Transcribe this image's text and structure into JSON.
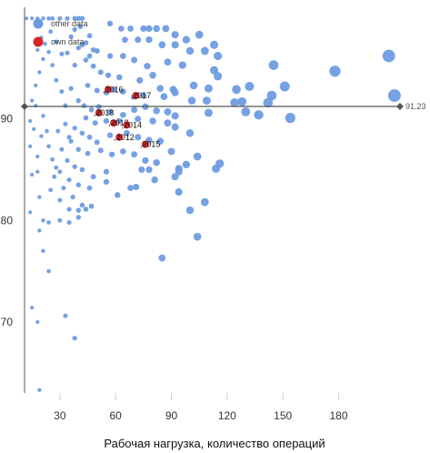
{
  "chart_data": {
    "type": "scatter",
    "xlabel": "Рабочая нагрузка, количество операций",
    "ylabel": "",
    "xlim": [
      11,
      213
    ],
    "ylim": [
      63,
      101
    ],
    "x_ticks": [
      30,
      60,
      90,
      120,
      150,
      180
    ],
    "y_ticks": [
      70,
      80,
      90
    ],
    "grid": false,
    "legend_position": "top-left",
    "reference_line": {
      "y": 91.23,
      "label": "91.23"
    },
    "colors": {
      "other": "#6a99e0",
      "own": "#d62728",
      "axis": "#555555",
      "tick_line": "#cfcfcf"
    },
    "series": [
      {
        "name": "other data",
        "color": "#6a99e0",
        "points": [
          [
            12,
            99.9
          ],
          [
            15,
            99.9
          ],
          [
            18,
            99.9
          ],
          [
            21,
            99.9
          ],
          [
            24,
            99.9
          ],
          [
            26,
            99.9
          ],
          [
            30,
            99.9
          ],
          [
            34,
            99.9
          ],
          [
            38,
            99.9
          ],
          [
            40,
            99.9
          ],
          [
            42,
            99.9
          ],
          [
            57,
            99.4
          ],
          [
            63,
            98.9
          ],
          [
            68,
            98.9
          ],
          [
            75,
            98.9
          ],
          [
            78,
            98.9
          ],
          [
            82,
            98.9
          ],
          [
            87,
            98.9
          ],
          [
            92,
            98.3
          ],
          [
            98,
            97.8
          ],
          [
            105,
            98.3
          ],
          [
            113,
            97.3
          ],
          [
            65,
            97.8
          ],
          [
            72,
            97.8
          ],
          [
            78,
            97.8
          ],
          [
            85,
            97.3
          ],
          [
            92,
            97.3
          ],
          [
            100,
            96.7
          ],
          [
            108,
            96.7
          ],
          [
            115,
            96.2
          ],
          [
            145,
            95.3
          ],
          [
            178,
            94.7
          ],
          [
            207,
            96.2
          ],
          [
            50,
            96.7
          ],
          [
            57,
            96.2
          ],
          [
            64,
            96.2
          ],
          [
            70,
            95.8
          ],
          [
            77,
            95.2
          ],
          [
            88,
            95.6
          ],
          [
            96,
            95.3
          ],
          [
            113,
            94.8
          ],
          [
            115,
            94.2
          ],
          [
            125,
            92.9
          ],
          [
            132,
            93.2
          ],
          [
            151,
            93.2
          ],
          [
            44,
            95.8
          ],
          [
            48,
            95.2
          ],
          [
            52,
            94.6
          ],
          [
            56,
            94.3
          ],
          [
            62,
            94.1
          ],
          [
            73,
            93.8
          ],
          [
            80,
            94.3
          ],
          [
            84,
            93.0
          ],
          [
            91,
            92.9
          ],
          [
            102,
            93.3
          ],
          [
            110,
            93.0
          ],
          [
            45,
            93.3
          ],
          [
            50,
            92.8
          ],
          [
            55,
            92.6
          ],
          [
            59,
            92.9
          ],
          [
            64,
            92.7
          ],
          [
            70,
            92.2
          ],
          [
            75,
            92.3
          ],
          [
            86,
            92.2
          ],
          [
            92,
            92.6
          ],
          [
            101,
            91.8
          ],
          [
            109,
            91.8
          ],
          [
            124,
            91.6
          ],
          [
            128,
            91.7
          ],
          [
            142,
            91.6
          ],
          [
            144,
            92.3
          ],
          [
            210,
            92.3
          ],
          [
            40,
            91.8
          ],
          [
            43,
            91.3
          ],
          [
            47,
            90.9
          ],
          [
            51,
            91.2
          ],
          [
            57,
            90.7
          ],
          [
            64,
            90.4
          ],
          [
            70,
            90.9
          ],
          [
            76,
            91.2
          ],
          [
            82,
            90.8
          ],
          [
            88,
            90.7
          ],
          [
            92,
            90.3
          ],
          [
            110,
            90.6
          ],
          [
            130,
            90.7
          ],
          [
            137,
            90.4
          ],
          [
            154,
            90.1
          ],
          [
            44,
            90.1
          ],
          [
            49,
            89.6
          ],
          [
            55,
            89.8
          ],
          [
            62,
            89.8
          ],
          [
            72,
            90.0
          ],
          [
            80,
            89.8
          ],
          [
            88,
            89.6
          ],
          [
            92,
            89.2
          ],
          [
            100,
            88.6
          ],
          [
            38,
            89.1
          ],
          [
            42,
            88.6
          ],
          [
            46,
            88.2
          ],
          [
            50,
            87.7
          ],
          [
            57,
            88.4
          ],
          [
            66,
            88.6
          ],
          [
            72,
            88.2
          ],
          [
            78,
            87.9
          ],
          [
            84,
            87.8
          ],
          [
            90,
            86.8
          ],
          [
            36,
            87.8
          ],
          [
            40,
            87.0
          ],
          [
            45,
            86.6
          ],
          [
            52,
            86.9
          ],
          [
            58,
            86.5
          ],
          [
            64,
            86.8
          ],
          [
            70,
            86.5
          ],
          [
            76,
            85.9
          ],
          [
            82,
            85.7
          ],
          [
            94,
            85.1
          ],
          [
            98,
            85.5
          ],
          [
            104,
            86.3
          ],
          [
            114,
            85.1
          ],
          [
            116,
            85.6
          ],
          [
            34,
            85.9
          ],
          [
            38,
            85.3
          ],
          [
            42,
            85.0
          ],
          [
            48,
            84.3
          ],
          [
            55,
            84.8
          ],
          [
            74,
            85.0
          ],
          [
            78,
            85.0
          ],
          [
            81,
            84.0
          ],
          [
            92,
            84.3
          ],
          [
            94,
            84.8
          ],
          [
            30,
            84.8
          ],
          [
            35,
            84.0
          ],
          [
            40,
            83.5
          ],
          [
            46,
            83.2
          ],
          [
            55,
            83.8
          ],
          [
            68,
            83.2
          ],
          [
            71,
            83.3
          ],
          [
            94,
            82.8
          ],
          [
            108,
            81.8
          ],
          [
            27,
            84.3
          ],
          [
            32,
            83.2
          ],
          [
            37,
            82.3
          ],
          [
            42,
            81.5
          ],
          [
            47,
            81.4
          ],
          [
            61,
            82.5
          ],
          [
            100,
            81.0
          ],
          [
            25,
            83.0
          ],
          [
            30,
            82.0
          ],
          [
            35,
            81.1
          ],
          [
            40,
            81.0
          ],
          [
            44,
            81.1
          ],
          [
            104,
            78.4
          ],
          [
            21,
            80.0
          ],
          [
            24,
            79.8
          ],
          [
            30,
            80.0
          ],
          [
            35,
            79.8
          ],
          [
            40,
            80.3
          ],
          [
            18,
            84.8
          ],
          [
            19,
            82.3
          ],
          [
            19,
            79.0
          ],
          [
            21,
            77.0
          ],
          [
            24,
            75.0
          ],
          [
            85,
            76.3
          ],
          [
            14,
            80.8
          ],
          [
            14,
            87.3
          ],
          [
            15,
            84.5
          ],
          [
            16,
            89.0
          ],
          [
            17,
            91.3
          ],
          [
            18,
            86.3
          ],
          [
            20,
            88.3
          ],
          [
            21,
            90.3
          ],
          [
            23,
            88.8
          ],
          [
            24,
            87.3
          ],
          [
            26,
            86.0
          ],
          [
            28,
            85.2
          ],
          [
            29,
            88.8
          ],
          [
            31,
            87.0
          ],
          [
            33,
            89.5
          ],
          [
            35,
            88.2
          ],
          [
            14,
            89.8
          ],
          [
            15,
            91.8
          ],
          [
            17,
            93.3
          ],
          [
            19,
            94.6
          ],
          [
            21,
            95.9
          ],
          [
            24,
            96.6
          ],
          [
            26,
            95.3
          ],
          [
            28,
            93.8
          ],
          [
            31,
            92.7
          ],
          [
            33,
            91.3
          ],
          [
            36,
            93.0
          ],
          [
            38,
            95.3
          ],
          [
            40,
            97.0
          ],
          [
            42,
            97.3
          ],
          [
            44,
            97.5
          ],
          [
            46,
            96.2
          ],
          [
            18,
            96.8
          ],
          [
            20,
            98.0
          ],
          [
            22,
            97.4
          ],
          [
            25,
            98.6
          ],
          [
            28,
            97.6
          ],
          [
            31,
            96.4
          ],
          [
            34,
            96.5
          ],
          [
            36,
            98.1
          ],
          [
            38,
            98.8
          ],
          [
            41,
            99.1
          ],
          [
            46,
            98.2
          ],
          [
            48,
            96.8
          ],
          [
            15,
            71.4
          ],
          [
            18,
            70.0
          ],
          [
            33,
            70.6
          ],
          [
            38,
            68.4
          ],
          [
            19,
            63.3
          ]
        ]
      },
      {
        "name": "own data",
        "color": "#d62728",
        "points": [
          [
            56,
            92.9,
            ",2016"
          ],
          [
            71,
            92.3,
            ",2017"
          ],
          [
            51,
            90.6,
            ",2018"
          ],
          [
            59,
            89.6,
            ",2013"
          ],
          [
            66,
            89.4,
            ",2014"
          ],
          [
            62,
            88.2,
            ",2012"
          ],
          [
            76,
            87.5,
            ",2015"
          ]
        ]
      }
    ]
  }
}
